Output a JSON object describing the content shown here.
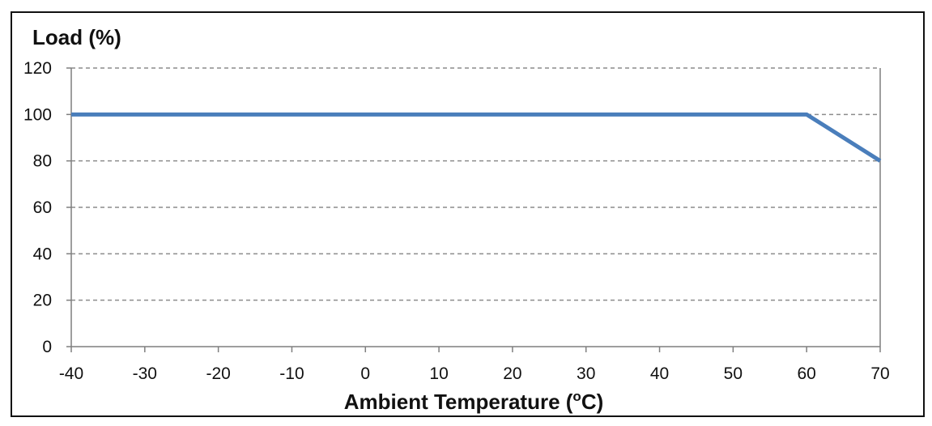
{
  "chart_data": {
    "type": "line",
    "title": "",
    "ylabel": "Load (%)",
    "xlabel_main": "Ambient Temperature (",
    "xlabel_sup": "o",
    "xlabel_end": "C)",
    "x": [
      -40,
      60,
      70
    ],
    "series": [
      {
        "values": [
          100,
          100,
          80
        ],
        "color": "#4a7ebb"
      }
    ],
    "xlim": [
      -40,
      70
    ],
    "ylim": [
      0,
      120
    ],
    "x_ticks": [
      -40,
      -30,
      -20,
      -10,
      0,
      10,
      20,
      30,
      40,
      50,
      60,
      70
    ],
    "y_ticks": [
      0,
      20,
      40,
      60,
      80,
      100,
      120
    ],
    "grid": "horizontal-dashed",
    "legend": "none",
    "axis_color": "#7f7f7f",
    "grid_color": "#8c8c8c"
  }
}
